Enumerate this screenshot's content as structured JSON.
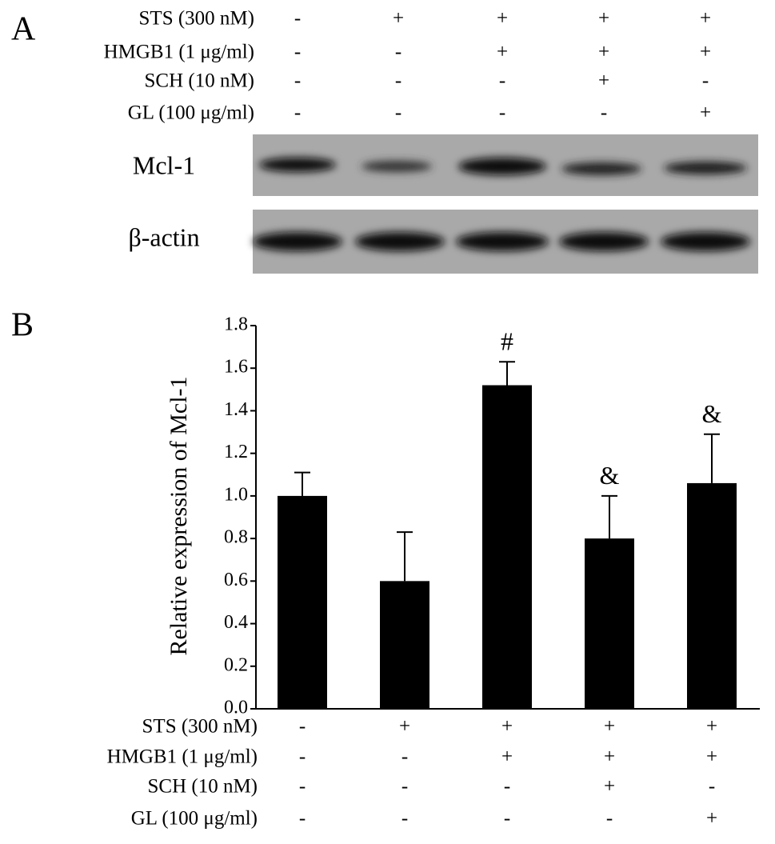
{
  "panel_a": {
    "label": "A",
    "treatments": [
      {
        "name": "STS (300 nM)",
        "marks": [
          "-",
          "+",
          "+",
          "+",
          "+"
        ]
      },
      {
        "name": "HMGB1 (1 μg/ml)",
        "marks": [
          "-",
          "-",
          "+",
          "+",
          "+"
        ]
      },
      {
        "name": "SCH (10 nM)",
        "marks": [
          "-",
          "-",
          "-",
          "+",
          "-"
        ]
      },
      {
        "name": "GL (100 μg/ml)",
        "marks": [
          "-",
          "-",
          "-",
          "-",
          "+"
        ]
      }
    ],
    "blots": [
      "Mcl-1",
      "β-actin"
    ]
  },
  "chart_data": {
    "type": "bar",
    "panel_label": "B",
    "ylabel": "Relative expression of Mcl-1",
    "values": [
      1.0,
      0.6,
      1.52,
      0.8,
      1.06
    ],
    "errors": [
      0.11,
      0.23,
      0.11,
      0.2,
      0.23
    ],
    "annotations": [
      null,
      null,
      "#",
      "&",
      "&"
    ],
    "color": "#000000",
    "ylim": [
      0,
      1.8
    ],
    "yticks": [
      {
        "value": 0,
        "label": "0.0"
      },
      {
        "value": 0.2,
        "label": "0.2"
      },
      {
        "value": 0.4,
        "label": "0.4"
      },
      {
        "value": 0.6,
        "label": "0.6"
      },
      {
        "value": 0.8,
        "label": "0.8"
      },
      {
        "value": 1.0,
        "label": "1.0"
      },
      {
        "value": 1.2,
        "label": "1.2"
      },
      {
        "value": 1.4,
        "label": "1.4"
      },
      {
        "value": 1.6,
        "label": "1.6"
      },
      {
        "value": 1.8,
        "label": "1.8"
      }
    ],
    "treatments": [
      {
        "name": "STS (300 nM)",
        "marks": [
          "-",
          "+",
          "+",
          "+",
          "+"
        ]
      },
      {
        "name": "HMGB1 (1 μg/ml)",
        "marks": [
          "-",
          "-",
          "+",
          "+",
          "+"
        ]
      },
      {
        "name": "SCH (10 nM)",
        "marks": [
          "-",
          "-",
          "-",
          "+",
          "-"
        ]
      },
      {
        "name": "GL (100 μg/ml)",
        "marks": [
          "-",
          "-",
          "-",
          "-",
          "+"
        ]
      }
    ]
  }
}
